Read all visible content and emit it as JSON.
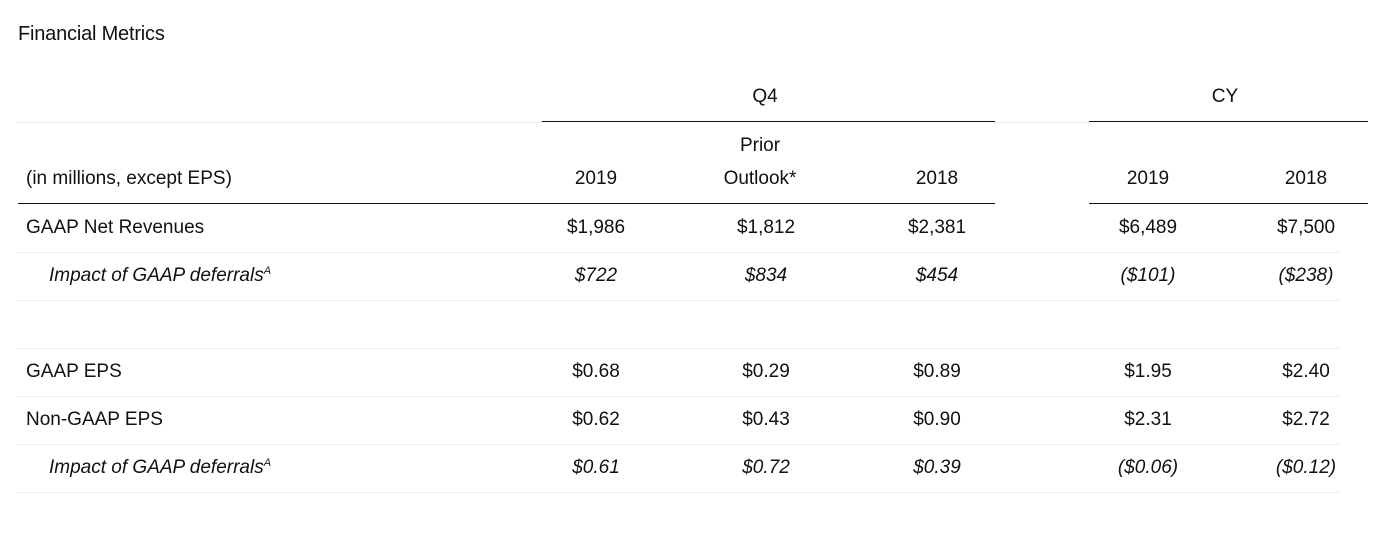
{
  "title": "Financial Metrics",
  "group_headers": {
    "q4": "Q4",
    "cy": "CY"
  },
  "column_headers": {
    "row_label": "(in millions, except EPS)",
    "q4_2019": "2019",
    "prior_line1": "Prior",
    "prior_line2": "Outlook*",
    "q4_2018": "2018",
    "cy_2019": "2019",
    "cy_2018": "2018"
  },
  "rows": [
    {
      "label": "GAAP Net Revenues",
      "sup": "",
      "italic": false,
      "values": [
        "$1,986",
        "$1,812",
        "$2,381",
        "$6,489",
        "$7,500"
      ]
    },
    {
      "label": "Impact of GAAP deferrals",
      "sup": "A",
      "italic": true,
      "values": [
        "$722",
        "$834",
        "$454",
        "($101)",
        "($238)"
      ]
    },
    {
      "label": "GAAP EPS",
      "sup": "",
      "italic": false,
      "values": [
        "$0.68",
        "$0.29",
        "$0.89",
        "$1.95",
        "$2.40"
      ]
    },
    {
      "label": "Non-GAAP EPS",
      "sup": "",
      "italic": false,
      "values": [
        "$0.62",
        "$0.43",
        "$0.90",
        "$2.31",
        "$2.72"
      ]
    },
    {
      "label": "Impact of GAAP deferrals",
      "sup": "A",
      "italic": true,
      "values": [
        "$0.61",
        "$0.72",
        "$0.39",
        "($0.06)",
        "($0.12)"
      ]
    }
  ]
}
